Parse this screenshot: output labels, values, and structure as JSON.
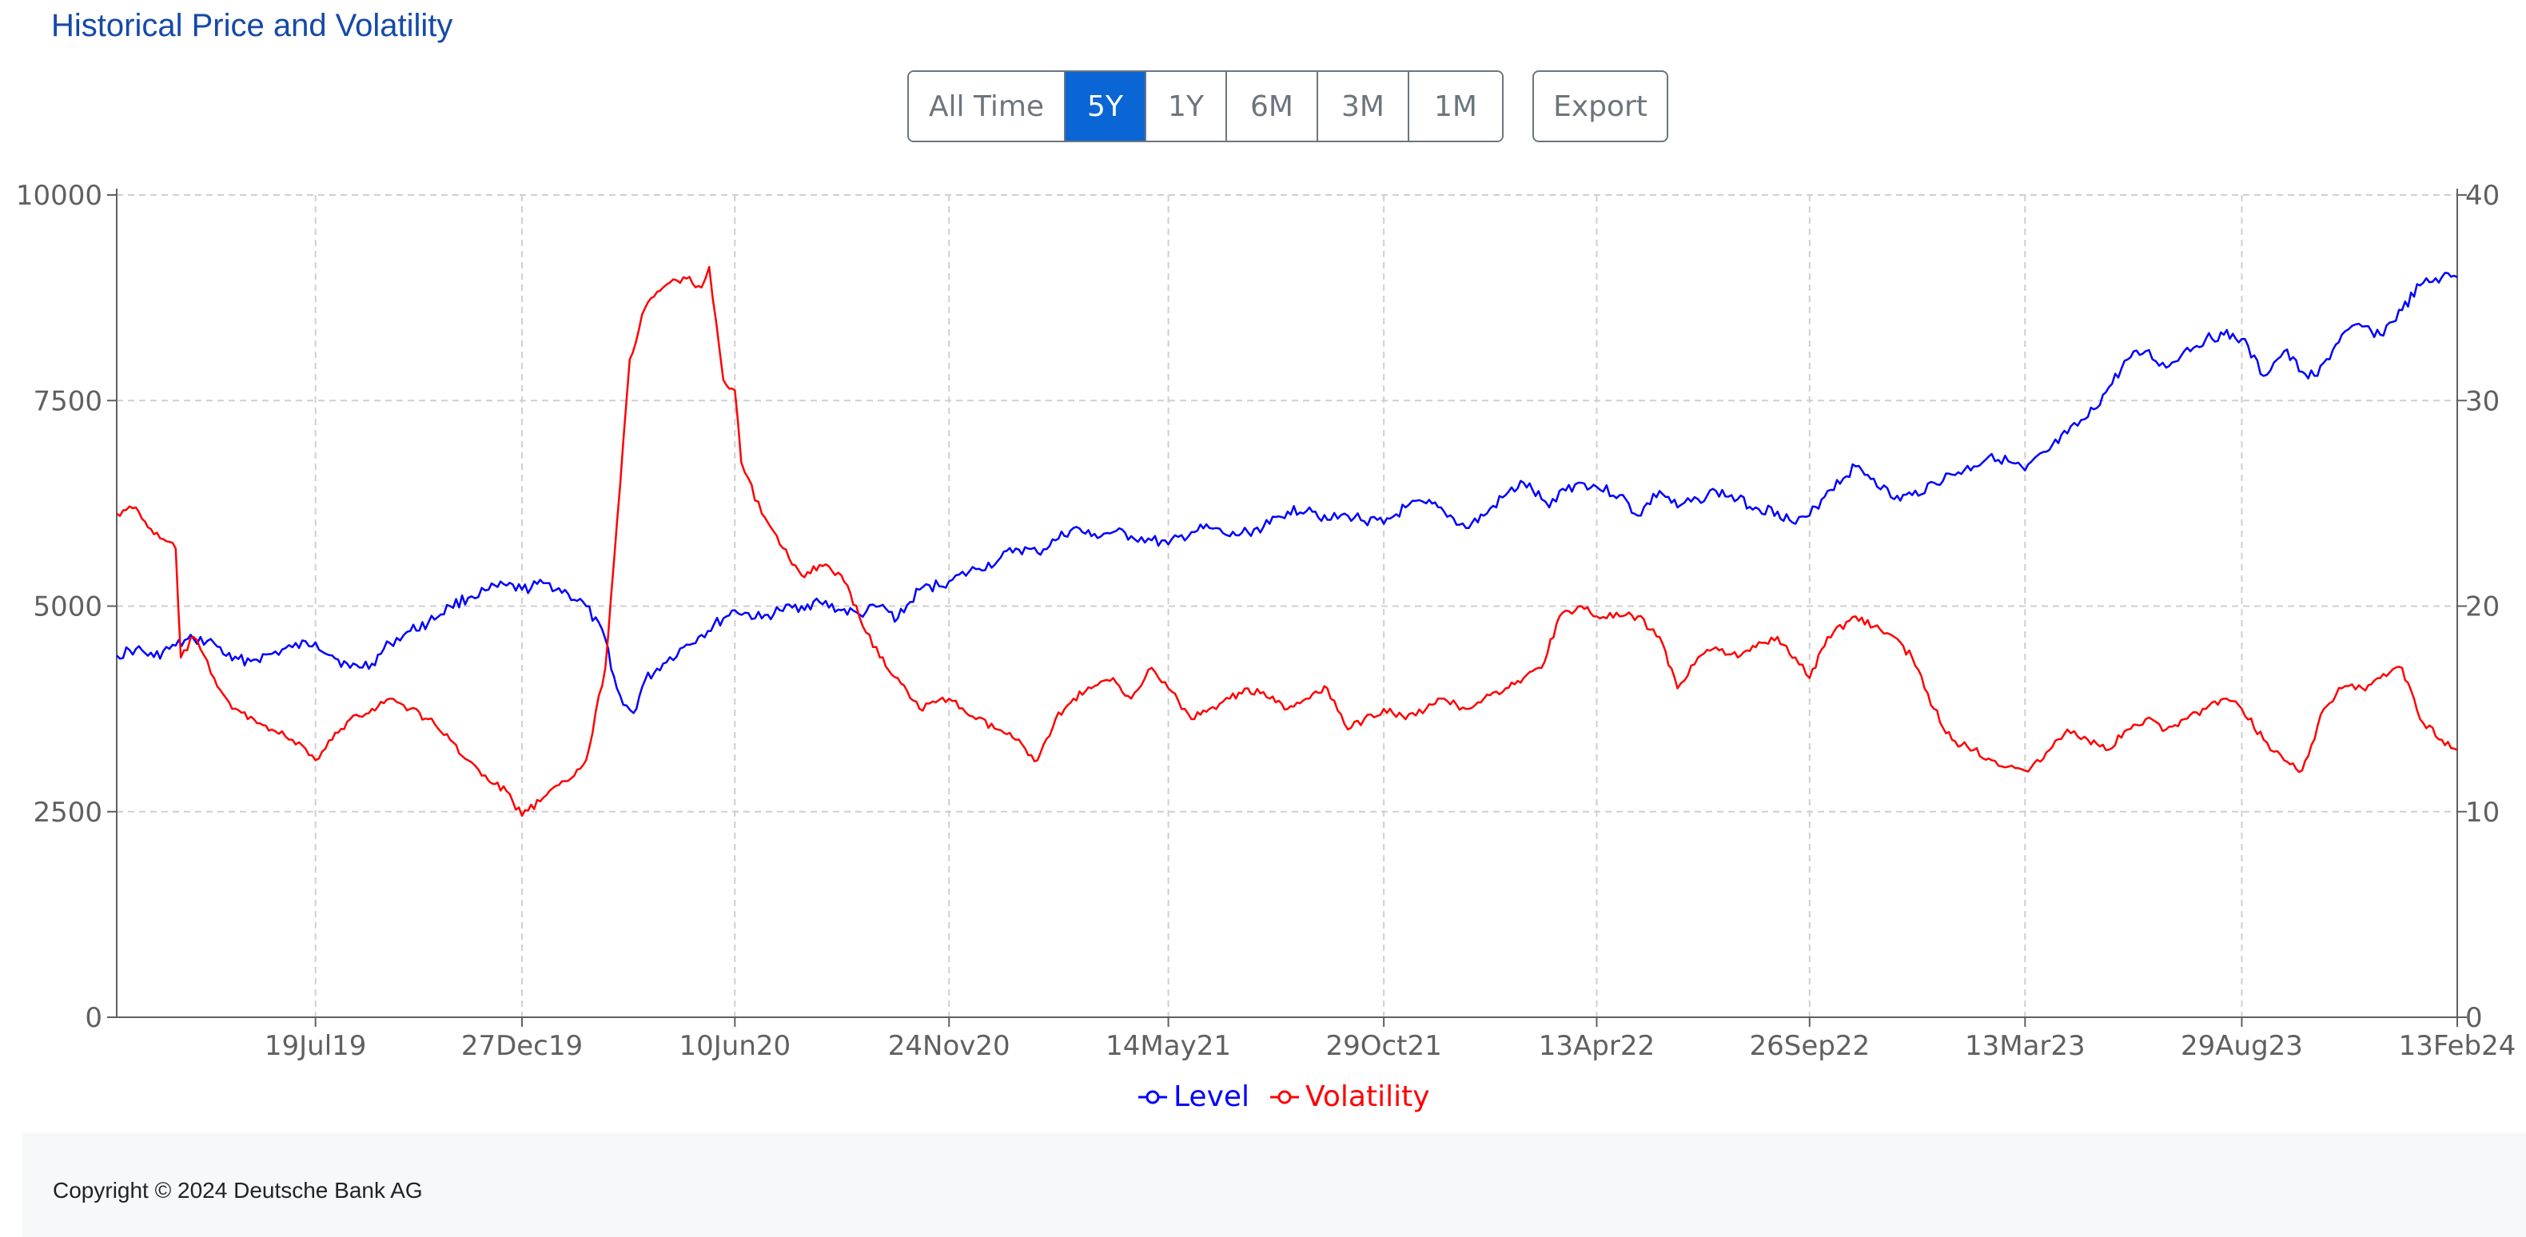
{
  "header": {
    "title": "Historical Price and Volatility"
  },
  "range_buttons": [
    {
      "label": "All Time",
      "active": false
    },
    {
      "label": "5Y",
      "active": true
    },
    {
      "label": "1Y",
      "active": false
    },
    {
      "label": "6M",
      "active": false
    },
    {
      "label": "3M",
      "active": false
    },
    {
      "label": "1M",
      "active": false
    }
  ],
  "export_label": "Export",
  "colors": {
    "level": "#0000ff",
    "volatility": "#ff0000",
    "active_button": "#0a66d4",
    "title": "#1449a8"
  },
  "footer": {
    "copyright": "Copyright © 2024 Deutsche Bank AG"
  },
  "chart_data": {
    "type": "line",
    "grid": true,
    "legend_position": "bottom-center",
    "x_ticks": [
      "19Jul19",
      "27Dec19",
      "10Jun20",
      "24Nov20",
      "14May21",
      "29Oct21",
      "13Apr22",
      "26Sep22",
      "13Mar23",
      "29Aug23",
      "13Feb24"
    ],
    "x_range": [
      "14Feb19",
      "13Feb24"
    ],
    "y_left": {
      "ticks": [
        "0",
        "2500",
        "5000",
        "7500",
        "10000"
      ],
      "range": [
        0,
        10000
      ]
    },
    "y_right": {
      "ticks": [
        "0",
        "10",
        "20",
        "30",
        "40"
      ],
      "range": [
        0,
        40
      ]
    },
    "series": [
      {
        "name": "Level",
        "axis": "left",
        "x": [
          "14Feb19",
          "01Mar19",
          "15Mar19",
          "01Apr19",
          "15Apr19",
          "01May19",
          "15May19",
          "01Jun19",
          "15Jun19",
          "01Jul19",
          "19Jul19",
          "01Aug19",
          "15Aug19",
          "01Sep19",
          "15Sep19",
          "01Oct19",
          "15Oct19",
          "01Nov19",
          "15Nov19",
          "01Dec19",
          "15Dec19",
          "27Dec19",
          "15Jan20",
          "01Feb20",
          "15Feb20",
          "01Mar20",
          "10Mar20",
          "15Mar20",
          "23Mar20",
          "01Apr20",
          "15Apr20",
          "01May20",
          "15May20",
          "01Jun20",
          "10Jun20",
          "01Jul20",
          "15Jul20",
          "01Aug20",
          "15Aug20",
          "01Sep20",
          "15Sep20",
          "01Oct20",
          "15Oct20",
          "01Nov20",
          "24Nov20",
          "15Dec20",
          "01Jan21",
          "15Jan21",
          "01Feb21",
          "15Feb21",
          "01Mar21",
          "15Mar21",
          "01Apr21",
          "15Apr21",
          "01May21",
          "14May21",
          "01Jun21",
          "15Jun21",
          "01Jul21",
          "15Jul21",
          "01Aug21",
          "15Aug21",
          "01Sep21",
          "15Sep21",
          "01Oct21",
          "29Oct21",
          "15Nov21",
          "01Dec21",
          "15Dec21",
          "01Jan22",
          "15Jan22",
          "01Feb22",
          "15Feb22",
          "01Mar22",
          "07Mar22",
          "15Mar22",
          "01Apr22",
          "13Apr22",
          "01May22",
          "15May22",
          "01Jun22",
          "15Jun22",
          "01Jul22",
          "15Jul22",
          "01Aug22",
          "15Aug22",
          "01Sep22",
          "15Sep22",
          "26Sep22",
          "10Oct22",
          "01Nov22",
          "15Nov22",
          "01Dec22",
          "15Dec22",
          "01Jan23",
          "15Jan23",
          "01Feb23",
          "15Feb23",
          "13Mar23",
          "01Apr23",
          "15Apr23",
          "01May23",
          "15May23",
          "01Jun23",
          "15Jun23",
          "01Jul23",
          "15Jul23",
          "01Aug23",
          "15Aug23",
          "29Aug23",
          "15Sep23",
          "01Oct23",
          "15Oct23",
          "27Oct23",
          "15Nov23",
          "01Dec23",
          "15Dec23",
          "01Jan24",
          "15Jan24",
          "01Feb24",
          "13Feb24"
        ],
        "values": [
          4400,
          4480,
          4380,
          4520,
          4600,
          4550,
          4340,
          4350,
          4420,
          4500,
          4560,
          4400,
          4250,
          4300,
          4550,
          4700,
          4800,
          5000,
          5100,
          5200,
          5250,
          5200,
          5280,
          5150,
          5000,
          4600,
          4000,
          3800,
          3700,
          4100,
          4300,
          4500,
          4650,
          4850,
          4950,
          4850,
          4950,
          5000,
          5050,
          4950,
          4900,
          5000,
          4850,
          5200,
          5300,
          5450,
          5550,
          5700,
          5650,
          5800,
          5950,
          5850,
          5900,
          5850,
          5800,
          5750,
          5900,
          5950,
          5850,
          5900,
          6000,
          6150,
          6200,
          6050,
          6100,
          6000,
          6200,
          6250,
          6150,
          5950,
          6100,
          6350,
          6500,
          6300,
          6200,
          6400,
          6500,
          6450,
          6350,
          6100,
          6400,
          6200,
          6300,
          6400,
          6300,
          6200,
          6150,
          6000,
          6100,
          6400,
          6700,
          6550,
          6300,
          6350,
          6500,
          6600,
          6700,
          6850,
          6650,
          6900,
          7100,
          7300,
          7600,
          8000,
          8100,
          7900,
          8100,
          8250,
          8300,
          8250,
          7800,
          8100,
          7850,
          7800,
          8300,
          8400,
          8300,
          8600,
          8900,
          9000,
          9000
        ]
      },
      {
        "name": "Volatility",
        "axis": "right",
        "x": [
          "14Feb19",
          "01Mar19",
          "15Mar19",
          "01Apr19",
          "05Apr19",
          "15Apr19",
          "01May19",
          "15May19",
          "01Jun19",
          "15Jun19",
          "01Jul19",
          "19Jul19",
          "01Aug19",
          "15Aug19",
          "01Sep19",
          "15Sep19",
          "01Oct19",
          "15Oct19",
          "01Nov19",
          "15Nov19",
          "01Dec19",
          "15Dec19",
          "27Dec19",
          "15Jan20",
          "01Feb20",
          "15Feb20",
          "01Mar20",
          "10Mar20",
          "15Mar20",
          "20Mar20",
          "01Apr20",
          "15Apr20",
          "01May20",
          "15May20",
          "21May20",
          "01Jun20",
          "10Jun20",
          "15Jun20",
          "01Jul20",
          "15Jul20",
          "01Aug20",
          "15Aug20",
          "01Sep20",
          "15Sep20",
          "01Oct20",
          "15Oct20",
          "01Nov20",
          "24Nov20",
          "15Dec20",
          "01Jan21",
          "15Jan21",
          "01Feb21",
          "15Feb21",
          "01Mar21",
          "15Mar21",
          "01Apr21",
          "15Apr21",
          "01May21",
          "14May21",
          "01Jun21",
          "15Jun21",
          "01Jul21",
          "15Jul21",
          "01Aug21",
          "15Aug21",
          "01Sep21",
          "15Sep21",
          "01Oct21",
          "29Oct21",
          "15Nov21",
          "01Dec21",
          "15Dec21",
          "01Jan22",
          "15Jan22",
          "01Feb22",
          "15Feb22",
          "01Mar22",
          "15Mar22",
          "01Apr22",
          "13Apr22",
          "01May22",
          "15May22",
          "01Jun22",
          "15Jun22",
          "01Jul22",
          "15Jul22",
          "01Aug22",
          "15Aug22",
          "01Sep22",
          "15Sep22",
          "26Sep22",
          "10Oct22",
          "01Nov22",
          "15Nov22",
          "01Dec22",
          "15Dec22",
          "01Jan23",
          "15Jan23",
          "01Feb23",
          "15Feb23",
          "13Mar23",
          "01Apr23",
          "15Apr23",
          "01May23",
          "15May23",
          "01Jun23",
          "15Jun23",
          "01Jul23",
          "15Jul23",
          "01Aug23",
          "15Aug23",
          "29Aug23",
          "15Sep23",
          "01Oct23",
          "15Oct23",
          "01Nov23",
          "15Nov23",
          "01Dec23",
          "15Dec23",
          "01Jan24",
          "15Jan24",
          "01Feb24",
          "13Feb24"
        ],
        "values": [
          24.5,
          24.8,
          23.5,
          22.8,
          17.5,
          18.5,
          16.5,
          15.0,
          14.5,
          14.0,
          13.5,
          12.5,
          13.5,
          14.5,
          15.0,
          15.5,
          15.0,
          14.5,
          13.5,
          12.5,
          11.5,
          11.0,
          9.8,
          10.8,
          11.5,
          12.5,
          17.0,
          24.0,
          28.0,
          32.0,
          34.5,
          35.5,
          36.0,
          35.5,
          36.5,
          31.0,
          30.5,
          27.0,
          24.5,
          23.0,
          21.5,
          22.0,
          21.5,
          19.5,
          17.5,
          16.5,
          15.0,
          15.5,
          14.5,
          14.0,
          13.5,
          12.5,
          14.5,
          15.5,
          16.0,
          16.5,
          15.5,
          17.0,
          16.0,
          14.5,
          15.0,
          15.5,
          16.0,
          15.5,
          15.0,
          15.5,
          16.0,
          14.0,
          15.0,
          14.5,
          15.0,
          15.5,
          15.0,
          15.5,
          16.0,
          16.5,
          17.0,
          19.5,
          20.0,
          19.5,
          19.5,
          19.5,
          18.5,
          16.0,
          17.5,
          18.0,
          17.5,
          18.0,
          18.5,
          17.5,
          16.5,
          18.5,
          19.5,
          19.0,
          18.5,
          17.5,
          15.0,
          13.5,
          13.0,
          12.5,
          12.0,
          13.0,
          14.0,
          13.5,
          13.0,
          14.0,
          14.5,
          14.0,
          14.5,
          15.0,
          15.5,
          15.0,
          13.5,
          12.5,
          12.0,
          15.0,
          16.0,
          16.0,
          16.5,
          17.0,
          14.5,
          13.5,
          13.0
        ]
      }
    ]
  }
}
